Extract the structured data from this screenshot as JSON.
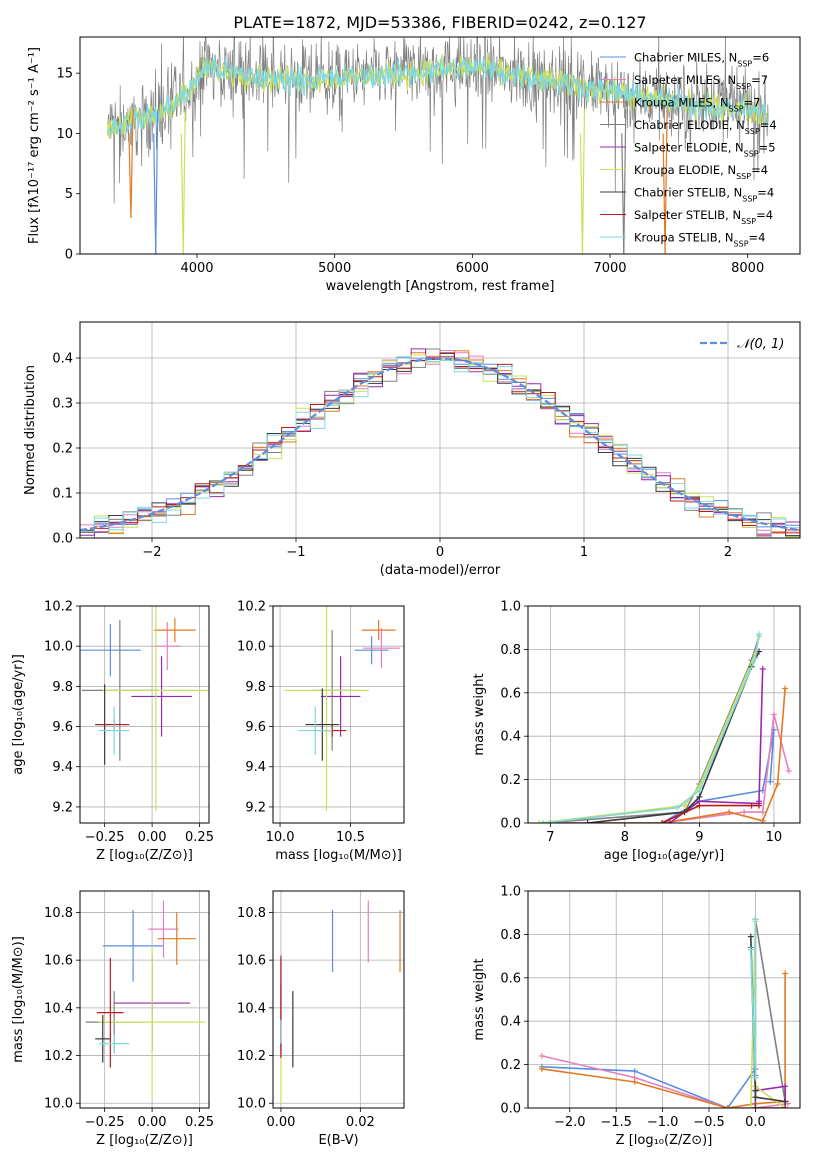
{
  "colors": {
    "chabrier_miles": "#5b8ee0",
    "salpeter_miles": "#e87fbd",
    "kroupa_miles": "#e27a23",
    "chabrier_elodie": "#808080",
    "salpeter_elodie": "#9c27b0",
    "kroupa_elodie": "#cbe05a",
    "chabrier_stelib": "#3a3a3a",
    "salpeter_stelib": "#b71c1c",
    "kroupa_stelib": "#7fd8e0",
    "normal": "#5b8ee0"
  },
  "chart_data": [
    {
      "id": "spectrum",
      "type": "line",
      "title": "PLATE=1872, MJD=53386, FIBERID=0242, z=0.127",
      "xlabel": "wavelength [Angstrom, rest frame]",
      "ylabel": "Flux [fλ10⁻¹⁷ erg cm⁻² s⁻¹ A⁻¹]",
      "xlim": [
        3150,
        8380
      ],
      "ylim": [
        0,
        18
      ],
      "xticks": [
        4000,
        5000,
        6000,
        7000,
        8000
      ],
      "yticks": [
        0,
        5,
        10,
        15
      ],
      "legend": [
        "Chabrier MILES, N_SSP=6",
        "Salpeter MILES, N_SSP=7",
        "Kroupa MILES, N_SSP=7",
        "Chabrier ELODIE, N_SSP=4",
        "Salpeter ELODIE, N_SSP=5",
        "Kroupa ELODIE, N_SSP=4",
        "Chabrier STELIB, N_SSP=4",
        "Salpeter STELIB, N_SSP=4",
        "Kroupa STELIB, N_SSP=4"
      ],
      "legend_position": "top-right",
      "spectrum_range": [
        3350,
        8150
      ],
      "continuum_anchors": [
        [
          3350,
          10.5
        ],
        [
          3700,
          11.5
        ],
        [
          3950,
          13.5
        ],
        [
          4050,
          15.5
        ],
        [
          4500,
          14.5
        ],
        [
          5000,
          14.5
        ],
        [
          6000,
          15.5
        ],
        [
          6500,
          14.5
        ],
        [
          7000,
          13.5
        ],
        [
          7500,
          12.5
        ],
        [
          8000,
          12.0
        ],
        [
          8150,
          11.5
        ]
      ],
      "dips": [
        {
          "x": 3520,
          "label": "Kroupa MILES",
          "min": 3
        },
        {
          "x": 3700,
          "label": "Chabrier MILES",
          "min": 0
        },
        {
          "x": 3900,
          "label": "Kroupa ELODIE",
          "min": 0
        },
        {
          "x": 6800,
          "label": "Kroupa ELODIE",
          "min": 0
        },
        {
          "x": 7100,
          "label": "Chabrier ELODIE",
          "min": 0
        },
        {
          "x": 7400,
          "label": "Kroupa MILES",
          "min": 0
        }
      ]
    },
    {
      "id": "residuals",
      "type": "histogram",
      "xlabel": "(data-model)/error",
      "ylabel": "Normed distribution",
      "xlim": [
        -2.5,
        2.5
      ],
      "ylim": [
        0,
        0.48
      ],
      "xticks": [
        -2,
        -1,
        0,
        1,
        2
      ],
      "yticks": [
        0.0,
        0.1,
        0.2,
        0.3,
        0.4
      ],
      "grid": true,
      "legend": [
        "𝒩(0, 1)"
      ],
      "legend_position": "top-right",
      "bin_width": 0.1
    },
    {
      "id": "age_vs_Z",
      "type": "errorbar",
      "xlabel": "Z [log₁₀(Z/Z⊙)]",
      "ylabel": "age  [log₁₀(age/yr)]",
      "xlim": [
        -0.38,
        0.3
      ],
      "ylim": [
        9.12,
        10.2
      ],
      "xticks": [
        -0.25,
        0.0,
        0.25
      ],
      "yticks": [
        9.2,
        9.4,
        9.6,
        9.8,
        10.0,
        10.2
      ],
      "grid": true,
      "points": [
        {
          "model": "Chabrier MILES",
          "x": -0.22,
          "xerr": 0.16,
          "y": 9.98,
          "yerr": 0.13
        },
        {
          "model": "Salpeter MILES",
          "x": 0.08,
          "xerr": 0.07,
          "y": 10.0,
          "yerr": 0.12
        },
        {
          "model": "Kroupa MILES",
          "x": 0.12,
          "xerr": 0.11,
          "y": 10.08,
          "yerr": 0.06
        },
        {
          "model": "Chabrier ELODIE",
          "x": -0.17,
          "xerr": 0.2,
          "y": 9.78,
          "yerr": 0.35
        },
        {
          "model": "Salpeter ELODIE",
          "x": 0.05,
          "xerr": 0.16,
          "y": 9.75,
          "yerr": 0.2
        },
        {
          "model": "Kroupa ELODIE",
          "x": 0.02,
          "xerr": 0.28,
          "y": 9.78,
          "yerr": 0.6
        },
        {
          "model": "Chabrier STELIB",
          "x": -0.25,
          "xerr": 0.05,
          "y": 9.61,
          "yerr": 0.2
        },
        {
          "model": "Salpeter STELIB",
          "x": -0.2,
          "xerr": 0.08,
          "y": 9.61,
          "yerr": 0.03
        },
        {
          "model": "Kroupa STELIB",
          "x": -0.2,
          "xerr": 0.08,
          "y": 9.58,
          "yerr": 0.12
        }
      ]
    },
    {
      "id": "age_vs_mass",
      "type": "errorbar",
      "xlabel": "mass [log₁₀(M/M⊙)]",
      "xlim": [
        9.95,
        10.88
      ],
      "ylim": [
        9.12,
        10.2
      ],
      "xticks": [
        10.0,
        10.5
      ],
      "yticks": [
        9.2,
        9.4,
        9.6,
        9.8,
        10.0,
        10.2
      ],
      "grid": true,
      "points": [
        {
          "model": "Chabrier MILES",
          "x": 10.65,
          "xerr": 0.12,
          "y": 9.98,
          "yerr": 0.07
        },
        {
          "model": "Salpeter MILES",
          "x": 10.72,
          "xerr": 0.13,
          "y": 9.99,
          "yerr": 0.1
        },
        {
          "model": "Kroupa MILES",
          "x": 10.7,
          "xerr": 0.12,
          "y": 10.08,
          "yerr": 0.05
        },
        {
          "model": "Chabrier ELODIE",
          "x": 10.37,
          "xerr": 0.14,
          "y": 9.78,
          "yerr": 0.3
        },
        {
          "model": "Salpeter ELODIE",
          "x": 10.43,
          "xerr": 0.14,
          "y": 9.75,
          "yerr": 0.2
        },
        {
          "model": "Kroupa ELODIE",
          "x": 10.33,
          "xerr": 0.3,
          "y": 9.78,
          "yerr": 0.6
        },
        {
          "model": "Chabrier STELIB",
          "x": 10.3,
          "xerr": 0.12,
          "y": 9.61,
          "yerr": 0.18
        },
        {
          "model": "Salpeter STELIB",
          "x": 10.37,
          "xerr": 0.1,
          "y": 9.58,
          "yerr": 0.03
        },
        {
          "model": "Kroupa STELIB",
          "x": 10.25,
          "xerr": 0.12,
          "y": 9.58,
          "yerr": 0.12
        }
      ]
    },
    {
      "id": "mass_weight_vs_age",
      "type": "line",
      "xlabel": "age  [log₁₀(age/yr)]",
      "ylabel": "mass weight",
      "xlim": [
        6.7,
        10.35
      ],
      "ylim": [
        0,
        1
      ],
      "xticks": [
        7,
        8,
        9,
        10
      ],
      "yticks": [
        0.0,
        0.2,
        0.4,
        0.6,
        0.8,
        1.0
      ],
      "grid": true,
      "series": [
        {
          "model": "Chabrier MILES",
          "x": [
            7.0,
            8.5,
            9.0,
            9.85,
            10.0,
            9.95
          ],
          "y": [
            0.0,
            0.0,
            0.1,
            0.15,
            0.43,
            0.19
          ]
        },
        {
          "model": "Salpeter MILES",
          "x": [
            7.0,
            8.5,
            9.6,
            9.85,
            10.0,
            10.2
          ],
          "y": [
            0.0,
            0.0,
            0.05,
            0.05,
            0.5,
            0.24
          ]
        },
        {
          "model": "Kroupa MILES",
          "x": [
            7.0,
            8.5,
            9.4,
            9.85,
            10.05,
            10.15
          ],
          "y": [
            0.0,
            0.0,
            0.05,
            0.01,
            0.18,
            0.62
          ]
        },
        {
          "model": "Chabrier ELODIE",
          "x": [
            6.9,
            8.8,
            9.0,
            9.7,
            9.8
          ],
          "y": [
            0.0,
            0.05,
            0.18,
            0.75,
            0.86
          ]
        },
        {
          "model": "Salpeter ELODIE",
          "x": [
            8.6,
            9.0,
            9.8,
            9.8,
            9.85
          ],
          "y": [
            0.0,
            0.1,
            0.09,
            0.1,
            0.71
          ]
        },
        {
          "model": "Kroupa ELODIE",
          "x": [
            6.85,
            8.8,
            9.0,
            9.75,
            9.8
          ],
          "y": [
            0.0,
            0.08,
            0.17,
            0.78,
            0.86
          ]
        },
        {
          "model": "Chabrier STELIB",
          "x": [
            7.5,
            8.8,
            9.0,
            9.7,
            9.8
          ],
          "y": [
            0.0,
            0.05,
            0.12,
            0.72,
            0.79
          ]
        },
        {
          "model": "Salpeter STELIB",
          "x": [
            8.5,
            9.0,
            9.7,
            9.8
          ],
          "y": [
            0.0,
            0.08,
            0.08,
            0.08
          ]
        },
        {
          "model": "Kroupa STELIB",
          "x": [
            6.9,
            8.7,
            9.0,
            9.75,
            9.8
          ],
          "y": [
            0.0,
            0.07,
            0.15,
            0.76,
            0.87
          ]
        }
      ]
    },
    {
      "id": "mass_vs_Z",
      "type": "errorbar",
      "xlabel": "Z [log₁₀(Z/Z⊙)]",
      "ylabel": "mass [log₁₀(M/M⊙)]",
      "xlim": [
        -0.38,
        0.3
      ],
      "ylim": [
        9.98,
        10.89
      ],
      "xticks": [
        -0.25,
        0.0,
        0.25
      ],
      "yticks": [
        10.0,
        10.2,
        10.4,
        10.6,
        10.8
      ],
      "grid": true,
      "points": [
        {
          "model": "Chabrier MILES",
          "x": -0.1,
          "xerr": 0.16,
          "y": 10.66,
          "yerr": 0.15
        },
        {
          "model": "Salpeter MILES",
          "x": 0.06,
          "xerr": 0.08,
          "y": 10.73,
          "yerr": 0.12
        },
        {
          "model": "Kroupa MILES",
          "x": 0.13,
          "xerr": 0.1,
          "y": 10.69,
          "yerr": 0.11
        },
        {
          "model": "Chabrier ELODIE",
          "x": -0.2,
          "xerr": 0.15,
          "y": 10.34,
          "yerr": 0.13
        },
        {
          "model": "Salpeter ELODIE",
          "x": 0.0,
          "xerr": 0.2,
          "y": 10.42,
          "yerr": 0.2
        },
        {
          "model": "Kroupa ELODIE",
          "x": 0.0,
          "xerr": 0.28,
          "y": 10.34,
          "yerr": 0.32
        },
        {
          "model": "Chabrier STELIB",
          "x": -0.26,
          "xerr": 0.04,
          "y": 10.27,
          "yerr": 0.1
        },
        {
          "model": "Salpeter STELIB",
          "x": -0.22,
          "xerr": 0.07,
          "y": 10.38,
          "yerr": 0.23
        },
        {
          "model": "Kroupa STELIB",
          "x": -0.2,
          "xerr": 0.08,
          "y": 10.25,
          "yerr": 0.04
        }
      ]
    },
    {
      "id": "mass_vs_EBV",
      "type": "errorbar",
      "xlabel": "E(B-V)",
      "xlim": [
        -0.002,
        0.031
      ],
      "ylim": [
        9.98,
        10.89
      ],
      "xticks": [
        0.0,
        0.02
      ],
      "yticks": [
        10.0,
        10.2,
        10.4,
        10.6,
        10.8
      ],
      "grid": true,
      "points": [
        {
          "model": "Chabrier MILES",
          "x": 0.013,
          "y": 10.68,
          "yerr": 0.13
        },
        {
          "model": "Salpeter MILES",
          "x": 0.022,
          "y": 10.72,
          "yerr": 0.13
        },
        {
          "model": "Kroupa MILES",
          "x": 0.03,
          "y": 10.68,
          "yerr": 0.13
        },
        {
          "model": "Chabrier ELODIE",
          "x": 0.0,
          "y": 10.35,
          "yerr": 0.15
        },
        {
          "model": "Salpeter ELODIE",
          "x": 0.0,
          "y": 10.42,
          "yerr": 0.2
        },
        {
          "model": "Kroupa ELODIE",
          "x": 0.0,
          "y": 10.2,
          "yerr": 0.2
        },
        {
          "model": "Chabrier STELIB",
          "x": 0.003,
          "y": 10.31,
          "yerr": 0.16
        },
        {
          "model": "Salpeter STELIB",
          "x": 0.0,
          "y": 10.4,
          "yerr": 0.21
        },
        {
          "model": "Kroupa STELIB",
          "x": 0.0,
          "y": 10.3,
          "yerr": 0.05
        }
      ]
    },
    {
      "id": "mass_weight_vs_Z",
      "type": "line",
      "xlabel": "Z [log₁₀(Z/Z⊙)]",
      "ylabel": "mass weight",
      "xlim": [
        -2.45,
        0.48
      ],
      "ylim": [
        0,
        1
      ],
      "xticks": [
        -2.0,
        -1.5,
        -1.0,
        -0.5,
        0.0
      ],
      "yticks": [
        0.0,
        0.2,
        0.4,
        0.6,
        0.8,
        1.0
      ],
      "grid": true,
      "series": [
        {
          "model": "Chabrier MILES",
          "x": [
            -2.3,
            -1.3,
            -0.3,
            0.0,
            0.0
          ],
          "y": [
            0.19,
            0.17,
            0.0,
            0.18,
            0.15
          ]
        },
        {
          "model": "Salpeter MILES",
          "x": [
            -2.3,
            -1.3,
            -0.3,
            0.0,
            0.35
          ],
          "y": [
            0.24,
            0.14,
            0.0,
            0.0,
            0.02
          ]
        },
        {
          "model": "Kroupa MILES",
          "x": [
            -2.3,
            -1.3,
            -0.3,
            0.0,
            0.32,
            0.32
          ],
          "y": [
            0.18,
            0.12,
            0.0,
            0.02,
            0.03,
            0.62
          ]
        },
        {
          "model": "Chabrier ELODIE",
          "x": [
            -0.05,
            0.0,
            0.0,
            0.32
          ],
          "y": [
            0.74,
            0.08,
            0.87,
            0.03
          ]
        },
        {
          "model": "Salpeter ELODIE",
          "x": [
            0.0,
            0.0,
            0.32,
            0.32
          ],
          "y": [
            0.0,
            0.08,
            0.1,
            0.0
          ]
        },
        {
          "model": "Kroupa ELODIE",
          "x": [
            -0.05,
            0.0,
            0.0,
            0.32
          ],
          "y": [
            0.0,
            0.86,
            0.1,
            0.0
          ]
        },
        {
          "model": "Chabrier STELIB",
          "x": [
            -0.05,
            0.0,
            0.0,
            0.32
          ],
          "y": [
            0.79,
            0.08,
            0.05,
            0.03
          ]
        },
        {
          "model": "Salpeter STELIB",
          "x": [
            0.0,
            0.32
          ],
          "y": [
            0.0,
            0.0
          ]
        },
        {
          "model": "Kroupa STELIB",
          "x": [
            -0.05,
            0.0,
            0.0
          ],
          "y": [
            0.73,
            0.14,
            0.87
          ]
        }
      ]
    }
  ]
}
